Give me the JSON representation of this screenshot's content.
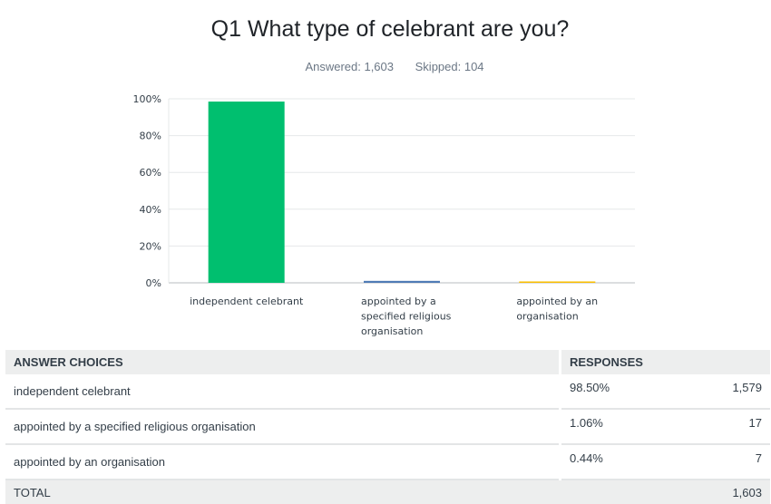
{
  "question": {
    "title": "Q1 What type of celebrant are you?",
    "answered": "Answered: 1,603",
    "skipped": "Skipped: 104"
  },
  "chart_data": {
    "type": "bar",
    "categories": [
      "independent celebrant",
      "appointed by a specified religious organisation",
      "appointed by an organisation"
    ],
    "category_lines": [
      [
        "independent celebrant"
      ],
      [
        "appointed by a",
        "specified religious",
        "organisation"
      ],
      [
        "appointed by an",
        "organisation"
      ]
    ],
    "values": [
      98.5,
      1.06,
      0.44
    ],
    "bar_colors": [
      "#00bf6f",
      "#507cb6",
      "#f9be00"
    ],
    "yticks": [
      "0%",
      "20%",
      "40%",
      "60%",
      "80%",
      "100%"
    ],
    "ylim": [
      0,
      100
    ],
    "grid": true
  },
  "table": {
    "headers": {
      "choices": "ANSWER CHOICES",
      "responses": "RESPONSES"
    },
    "rows": [
      {
        "choice": "independent celebrant",
        "percent": "98.50%",
        "count": "1,579"
      },
      {
        "choice": "appointed by a specified religious organisation",
        "percent": "1.06%",
        "count": "17"
      },
      {
        "choice": "appointed by an organisation",
        "percent": "0.44%",
        "count": "7"
      }
    ],
    "total": {
      "label": "TOTAL",
      "count": "1,603"
    }
  }
}
